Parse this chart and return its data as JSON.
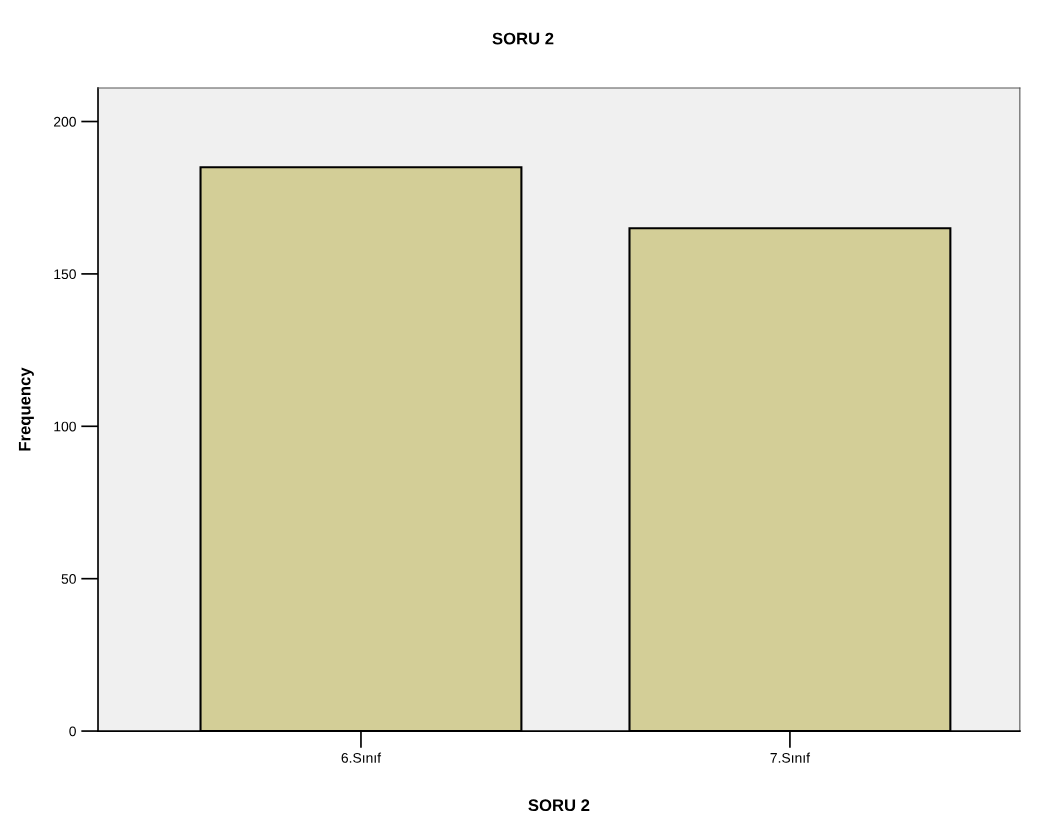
{
  "chart_data": {
    "type": "bar",
    "title": "SORU 2",
    "xlabel": "SORU 2",
    "ylabel": "Frequency",
    "categories": [
      "6.Sınıf",
      "7.Sınıf"
    ],
    "values": [
      185,
      165
    ],
    "color": "#d3ce97",
    "ylim": [
      0,
      211
    ],
    "yticks": [
      0,
      50,
      100,
      150,
      200
    ],
    "grid": false
  }
}
